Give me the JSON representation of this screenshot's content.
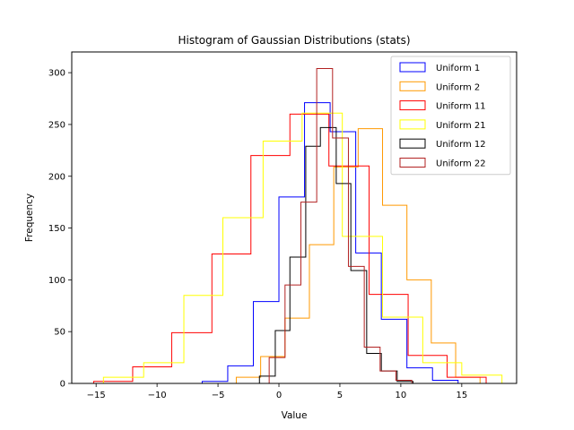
{
  "chart_data": {
    "type": "histogram",
    "title": "Histogram of Gaussian Distributions (stats)",
    "xlabel": "Value",
    "ylabel": "Frequency",
    "xlim": [
      -17,
      19.5
    ],
    "ylim": [
      0,
      320
    ],
    "xticks": [
      -15,
      -10,
      -5,
      0,
      5,
      10,
      15
    ],
    "yticks": [
      0,
      50,
      100,
      150,
      200,
      250,
      300
    ],
    "grid": false,
    "legend_position": "top-right",
    "series": [
      {
        "name": "Uniform 1",
        "color": "#0000ff",
        "edges": [
          -6.3,
          -4.2,
          -2.1,
          0.0,
          2.1,
          4.2,
          6.3,
          8.4,
          10.5,
          12.6,
          14.7
        ],
        "counts": [
          2,
          17,
          79,
          180,
          271,
          243,
          126,
          62,
          15,
          3
        ]
      },
      {
        "name": "Uniform 2",
        "color": "#ff9900",
        "edges": [
          -3.5,
          -1.5,
          0.5,
          2.5,
          4.5,
          6.5,
          8.5,
          10.5,
          12.5,
          14.5,
          16.5
        ],
        "counts": [
          6,
          26,
          63,
          134,
          209,
          246,
          172,
          100,
          39,
          6
        ]
      },
      {
        "name": "Uniform 11",
        "color": "#ff0000",
        "edges": [
          -15.2,
          -12.0,
          -8.8,
          -5.5,
          -2.3,
          0.9,
          4.1,
          7.4,
          10.6,
          13.8,
          17.0
        ],
        "counts": [
          2,
          16,
          49,
          125,
          220,
          260,
          210,
          86,
          27,
          6
        ]
      },
      {
        "name": "Uniform 21",
        "color": "#ffff00",
        "edges": [
          -14.4,
          -11.1,
          -7.8,
          -4.6,
          -1.3,
          1.9,
          5.2,
          8.5,
          11.8,
          15.0,
          18.3
        ],
        "counts": [
          6,
          20,
          85,
          160,
          234,
          261,
          142,
          64,
          20,
          8
        ]
      },
      {
        "name": "Uniform 12",
        "color": "#000000",
        "edges": [
          -1.6,
          -0.3,
          0.9,
          2.2,
          3.4,
          4.7,
          5.9,
          7.2,
          8.4,
          9.7,
          11.0
        ],
        "counts": [
          7,
          51,
          122,
          229,
          247,
          193,
          109,
          29,
          12,
          2
        ]
      },
      {
        "name": "Uniform 22",
        "color": "#b22222",
        "edges": [
          -0.8,
          0.5,
          1.8,
          3.1,
          4.4,
          5.7,
          7.0,
          8.3,
          9.6,
          10.9
        ],
        "counts": [
          25,
          95,
          175,
          304,
          237,
          113,
          35,
          12,
          3
        ]
      }
    ]
  }
}
